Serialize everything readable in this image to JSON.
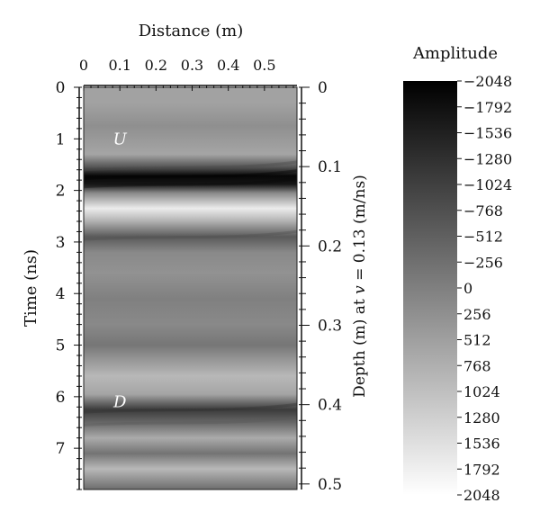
{
  "chart_data": {
    "type": "heatmap",
    "title": "",
    "top_axis": {
      "label": "Distance (m)",
      "range": [
        0,
        0.59
      ],
      "ticks": [
        0,
        0.1,
        0.2,
        0.3,
        0.4,
        0.5
      ],
      "tick_labels": [
        "0",
        "0.1",
        "0.2",
        "0.3",
        "0.4",
        "0.5"
      ]
    },
    "left_axis": {
      "label": "Time (ns)",
      "range": [
        0,
        7.8
      ],
      "ticks": [
        0,
        1,
        2,
        3,
        4,
        5,
        6,
        7
      ],
      "tick_labels": [
        "0",
        "1",
        "2",
        "3",
        "4",
        "5",
        "6",
        "7"
      ],
      "inverted": true
    },
    "right_axis": {
      "label_prefix": "Depth (m) at ",
      "label_var": "v",
      "label_suffix": " = 0.13 (m/ns)",
      "range": [
        0,
        0.507
      ],
      "ticks": [
        0,
        0.1,
        0.2,
        0.3,
        0.4,
        0.5
      ],
      "tick_labels": [
        "0",
        "0.1",
        "0.2",
        "0.3",
        "0.4",
        "0.5"
      ]
    },
    "colorbar": {
      "label": "Amplitude",
      "range": [
        -2048,
        2048
      ],
      "tick_labels": [
        "−2048",
        "−1792",
        "−1536",
        "−1280",
        "−1024",
        "−768",
        "−512",
        "−256",
        "0",
        "256",
        "512",
        "768",
        "1024",
        "1280",
        "1536",
        "1792",
        "2048"
      ],
      "colormap": "gray (−2048 black → 2048 white)"
    },
    "annotations": [
      {
        "text": "U",
        "distance": 0.1,
        "time": 1.0
      },
      {
        "text": "D",
        "distance": 0.1,
        "time": 6.1
      }
    ],
    "bands": [
      {
        "time": 0.3,
        "amplitude": 550
      },
      {
        "time": 0.75,
        "amplitude": 250
      },
      {
        "time": 1.3,
        "amplitude": 600
      },
      {
        "time": 1.55,
        "amplitude": -700
      },
      {
        "time": 1.72,
        "amplitude": -1950
      },
      {
        "time": 1.88,
        "amplitude": -1700
      },
      {
        "time": 2.05,
        "amplitude": 150
      },
      {
        "time": 2.35,
        "amplitude": 1750
      },
      {
        "time": 2.6,
        "amplitude": 800
      },
      {
        "time": 2.9,
        "amplitude": -600
      },
      {
        "time": 3.2,
        "amplitude": 150
      },
      {
        "time": 3.6,
        "amplitude": 300
      },
      {
        "time": 4.1,
        "amplitude": 0
      },
      {
        "time": 4.6,
        "amplitude": 150
      },
      {
        "time": 5.0,
        "amplitude": -150
      },
      {
        "time": 5.3,
        "amplitude": 400
      },
      {
        "time": 5.6,
        "amplitude": 900
      },
      {
        "time": 5.95,
        "amplitude": 600
      },
      {
        "time": 6.25,
        "amplitude": -1100
      },
      {
        "time": 6.5,
        "amplitude": -400
      },
      {
        "time": 6.8,
        "amplitude": 700
      },
      {
        "time": 7.1,
        "amplitude": -200
      },
      {
        "time": 7.4,
        "amplitude": 900
      },
      {
        "time": 7.8,
        "amplitude": -300
      }
    ]
  }
}
